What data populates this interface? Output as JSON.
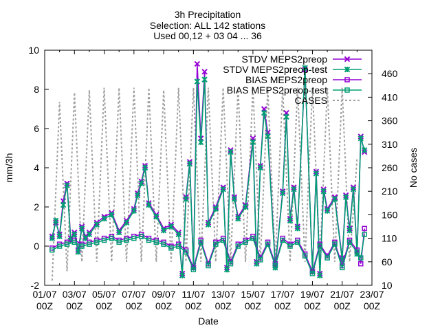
{
  "chart_data": {
    "type": "line",
    "title": [
      "3h Precipitation",
      "Selection: ALL    142 stations",
      "Used 00,12 + 03 04 ... 36"
    ],
    "xlabel": "Date",
    "ylabel": "mm/3h",
    "y2label": "No cases",
    "xlim": [
      0,
      22
    ],
    "ylim": [
      -2,
      10
    ],
    "y2lim": [
      10,
      510
    ],
    "x_ticks": [
      {
        "pos": 0,
        "line1": "01/07",
        "line2": "00Z"
      },
      {
        "pos": 2,
        "line1": "03/07",
        "line2": "00Z"
      },
      {
        "pos": 4,
        "line1": "05/07",
        "line2": "00Z"
      },
      {
        "pos": 6,
        "line1": "07/07",
        "line2": "00Z"
      },
      {
        "pos": 8,
        "line1": "09/07",
        "line2": "00Z"
      },
      {
        "pos": 10,
        "line1": "11/07",
        "line2": "00Z"
      },
      {
        "pos": 12,
        "line1": "13/07",
        "line2": "00Z"
      },
      {
        "pos": 14,
        "line1": "15/07",
        "line2": "00Z"
      },
      {
        "pos": 16,
        "line1": "17/07",
        "line2": "00Z"
      },
      {
        "pos": 18,
        "line1": "19/07",
        "line2": "00Z"
      },
      {
        "pos": 20,
        "line1": "21/07",
        "line2": "00Z"
      },
      {
        "pos": 22,
        "line1": "23/07",
        "line2": "00Z"
      }
    ],
    "y_ticks": [
      "-2",
      "0",
      "2",
      "4",
      "6",
      "8",
      "10"
    ],
    "y2_ticks": [
      "10",
      "60",
      "110",
      "160",
      "210",
      "260",
      "310",
      "360",
      "410",
      "460"
    ],
    "legend_position": "top-right",
    "series": [
      {
        "name": "STDV MEPS2preop",
        "color": "#9400d3",
        "marker": "x",
        "axis": "y1",
        "x": [
          0.5,
          0.75,
          1.0,
          1.25,
          1.5,
          1.75,
          2.0,
          2.25,
          2.5,
          2.75,
          3.0,
          3.5,
          4.0,
          4.5,
          5.0,
          5.5,
          6.0,
          6.25,
          6.5,
          6.75,
          7.0,
          7.5,
          8.0,
          8.5,
          9.0,
          9.25,
          9.5,
          9.75,
          10.0,
          10.25,
          10.5,
          10.75,
          11.0,
          11.5,
          12.0,
          12.25,
          12.5,
          12.75,
          13.0,
          13.5,
          14.0,
          14.25,
          14.5,
          14.75,
          15.0,
          15.5,
          16.0,
          16.25,
          16.5,
          16.75,
          17.0,
          17.5,
          18.0,
          18.25,
          18.5,
          18.75,
          19.0,
          19.5,
          20.0,
          20.25,
          20.5,
          20.75,
          21.0,
          21.25,
          21.5
        ],
        "y": [
          0.5,
          1.2,
          0.6,
          2.3,
          3.2,
          0.4,
          0.7,
          -0.2,
          1.0,
          0.5,
          0.7,
          1.2,
          1.5,
          1.7,
          0.8,
          1.3,
          1.9,
          2.7,
          3.3,
          4.1,
          2.2,
          1.6,
          0.9,
          1.1,
          0.7,
          -1.4,
          2.5,
          4.3,
          -1.0,
          9.3,
          5.5,
          8.9,
          1.2,
          2.0,
          3.0,
          -1.1,
          4.9,
          2.5,
          1.5,
          2.1,
          5.5,
          -0.8,
          4.1,
          7.0,
          5.8,
          -1.0,
          2.8,
          6.8,
          1.4,
          3.0,
          1.0,
          9.0,
          -1.2,
          3.8,
          -1.4,
          2.9,
          1.9,
          2.5,
          -0.6,
          2.6,
          0.9,
          3.0,
          -0.3,
          5.6,
          4.8
        ]
      },
      {
        "name": "STDV MEPS2preop-test",
        "color": "#009e73",
        "marker": "star",
        "axis": "y1",
        "x": [
          0.5,
          0.75,
          1.0,
          1.25,
          1.5,
          1.75,
          2.0,
          2.25,
          2.5,
          2.75,
          3.0,
          3.5,
          4.0,
          4.5,
          5.0,
          5.5,
          6.0,
          6.25,
          6.5,
          6.75,
          7.0,
          7.5,
          8.0,
          8.5,
          9.0,
          9.25,
          9.5,
          9.75,
          10.0,
          10.25,
          10.5,
          10.75,
          11.0,
          11.5,
          12.0,
          12.25,
          12.5,
          12.75,
          13.0,
          13.5,
          14.0,
          14.25,
          14.5,
          14.75,
          15.0,
          15.5,
          16.0,
          16.25,
          16.5,
          16.75,
          17.0,
          17.5,
          18.0,
          18.25,
          18.5,
          18.75,
          19.0,
          19.5,
          20.0,
          20.25,
          20.5,
          20.75,
          21.0,
          21.25,
          21.5
        ],
        "y": [
          0.4,
          1.3,
          0.5,
          2.1,
          3.1,
          0.3,
          0.6,
          -0.3,
          0.9,
          0.4,
          0.6,
          1.1,
          1.4,
          1.6,
          0.7,
          1.2,
          1.8,
          2.6,
          3.2,
          4.0,
          2.1,
          1.5,
          0.8,
          1.0,
          0.6,
          -1.5,
          2.4,
          4.2,
          -1.1,
          8.4,
          5.3,
          8.5,
          1.1,
          1.9,
          2.9,
          -1.2,
          4.8,
          2.4,
          1.4,
          2.0,
          5.3,
          -0.9,
          4.0,
          6.8,
          5.6,
          -1.1,
          2.7,
          6.6,
          1.3,
          2.9,
          0.9,
          9.1,
          -1.3,
          3.7,
          -1.5,
          2.8,
          1.8,
          2.4,
          -0.7,
          2.5,
          0.8,
          2.9,
          -0.4,
          5.5,
          4.9
        ]
      },
      {
        "name": "BIAS MEPS2preop",
        "color": "#9400d3",
        "marker": "square",
        "axis": "y1",
        "x": [
          0.5,
          1.0,
          1.5,
          2.0,
          2.5,
          3.0,
          3.5,
          4.0,
          4.5,
          5.0,
          5.5,
          6.0,
          6.5,
          7.0,
          7.5,
          8.0,
          8.5,
          9.0,
          9.5,
          10.0,
          10.5,
          11.0,
          11.5,
          12.0,
          12.5,
          13.0,
          13.5,
          14.0,
          14.5,
          15.0,
          15.5,
          16.0,
          16.5,
          17.0,
          17.5,
          18.0,
          18.5,
          19.0,
          19.5,
          20.0,
          20.5,
          21.0,
          21.25,
          21.5
        ],
        "y": [
          -0.1,
          0.1,
          0.2,
          0.3,
          0.1,
          0.2,
          0.3,
          0.4,
          0.5,
          0.3,
          0.4,
          0.5,
          0.6,
          0.4,
          0.3,
          0.2,
          0.0,
          0.1,
          -0.2,
          -1.1,
          0.3,
          -0.9,
          0.2,
          0.4,
          -0.8,
          0.1,
          0.3,
          0.5,
          -0.6,
          0.2,
          -0.9,
          0.4,
          0.1,
          0.3,
          -0.4,
          -1.3,
          0.1,
          -0.5,
          0.2,
          -1.0,
          0.3,
          -0.2,
          -0.9,
          0.9
        ]
      },
      {
        "name": "BIAS MEPS2preop-test",
        "color": "#009e73",
        "marker": "square",
        "axis": "y1",
        "x": [
          0.5,
          1.0,
          1.5,
          2.0,
          2.5,
          3.0,
          3.5,
          4.0,
          4.5,
          5.0,
          5.5,
          6.0,
          6.5,
          7.0,
          7.5,
          8.0,
          8.5,
          9.0,
          9.5,
          10.0,
          10.5,
          11.0,
          11.5,
          12.0,
          12.5,
          13.0,
          13.5,
          14.0,
          14.5,
          15.0,
          15.5,
          16.0,
          16.5,
          17.0,
          17.5,
          18.0,
          18.5,
          19.0,
          19.5,
          20.0,
          20.5,
          21.0,
          21.25,
          21.5
        ],
        "y": [
          -0.2,
          0.0,
          0.1,
          0.2,
          0.0,
          0.1,
          0.2,
          0.3,
          0.4,
          0.2,
          0.3,
          0.4,
          0.5,
          0.3,
          0.2,
          0.1,
          -0.1,
          0.0,
          -0.3,
          -1.2,
          0.2,
          -1.0,
          0.1,
          0.3,
          -0.9,
          0.0,
          0.2,
          0.4,
          -0.7,
          0.1,
          -1.0,
          0.3,
          0.0,
          0.2,
          -0.5,
          -1.4,
          0.0,
          -0.6,
          0.1,
          -1.1,
          0.2,
          -0.3,
          -0.6,
          0.6
        ]
      },
      {
        "name": "CASES",
        "color": "#a0a0a0",
        "marker": "none",
        "axis": "y2",
        "dashed": true,
        "x": [
          0.5,
          1.0,
          1.5,
          2.0,
          2.5,
          3.0,
          3.5,
          4.0,
          4.5,
          5.0,
          5.5,
          6.0,
          6.5,
          7.0,
          7.5,
          8.0,
          8.5,
          9.0,
          9.5,
          10.0,
          10.5,
          11.0,
          11.5,
          12.0,
          12.5,
          13.0,
          13.5,
          14.0,
          14.5,
          15.0,
          15.5,
          16.0,
          16.5,
          17.0,
          17.5,
          18.0,
          18.5,
          19.0,
          19.5,
          20.0,
          20.5,
          21.0
        ],
        "y": [
          20,
          400,
          40,
          420,
          60,
          425,
          60,
          430,
          60,
          430,
          60,
          430,
          60,
          430,
          60,
          425,
          60,
          430,
          60,
          430,
          60,
          430,
          60,
          430,
          60,
          430,
          60,
          430,
          60,
          430,
          60,
          430,
          60,
          430,
          60,
          430,
          60,
          430,
          60,
          430,
          60,
          280
        ]
      }
    ]
  }
}
